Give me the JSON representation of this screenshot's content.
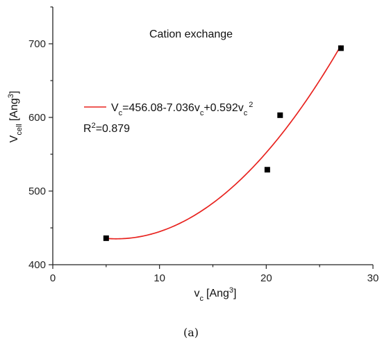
{
  "chart_data": {
    "type": "scatter",
    "title": "Cation exchange",
    "xlabel": {
      "base": "v",
      "sub": "c",
      "unit_base": "[Ang",
      "unit_sup": "3",
      "unit_close": "]"
    },
    "ylabel": {
      "base": "V",
      "sub": "cell",
      "unit_base": "[Ang",
      "unit_sup": "3",
      "unit_close": "]"
    },
    "xlim": [
      0,
      30
    ],
    "ylim": [
      400,
      750
    ],
    "x_ticks": [
      0,
      10,
      20,
      30
    ],
    "y_ticks": [
      400,
      500,
      600,
      700
    ],
    "points": [
      {
        "x": 5.0,
        "y": 436
      },
      {
        "x": 20.1,
        "y": 529
      },
      {
        "x": 21.3,
        "y": 603
      },
      {
        "x": 27.0,
        "y": 694
      }
    ],
    "fit": {
      "coefficients": [
        456.08,
        -7.036,
        0.592
      ],
      "x_range": [
        5.0,
        27.0
      ],
      "legend": {
        "a": "V",
        "a_sub": "c",
        "eq1": "=456.08-7.036v",
        "b_sub": "c",
        "eq2": "+0.592v",
        "c_sub": "c",
        "c_sup": "2"
      }
    },
    "r2": {
      "base": "R",
      "sup": "2",
      "value": "=0.879"
    },
    "caption": "(a)",
    "colors": {
      "fit": "#e8231f",
      "marker": "#000000",
      "axis": "#222222"
    }
  }
}
